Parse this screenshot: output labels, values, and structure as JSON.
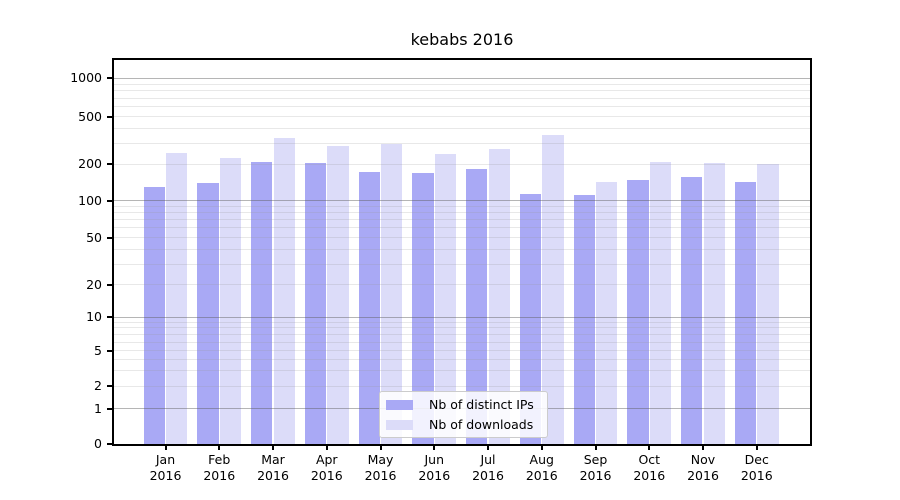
{
  "chart_data": {
    "type": "bar",
    "title": "kebabs 2016",
    "yscale": "symlog",
    "grid": true,
    "legend_position": "inside lower-center",
    "categories": [
      "Jan",
      "Feb",
      "Mar",
      "Apr",
      "May",
      "Jun",
      "Jul",
      "Aug",
      "Sep",
      "Oct",
      "Nov",
      "Dec"
    ],
    "year_label": "2016",
    "y_ticks": [
      0,
      1,
      2,
      5,
      10,
      20,
      50,
      100,
      200,
      500,
      1000
    ],
    "y_tick_labels": [
      "0",
      "1",
      "2",
      "5",
      "10",
      "20",
      "50",
      "100",
      "200",
      "500",
      "1000"
    ],
    "ylim": [
      0,
      1400
    ],
    "series": [
      {
        "name": "Nb of distinct IPs",
        "color": "#a9a9f5",
        "values": [
          129,
          140,
          208,
          205,
          174,
          170,
          184,
          113,
          111,
          148,
          156,
          144
        ]
      },
      {
        "name": "Nb of downloads",
        "color": "#dcdcf9",
        "values": [
          250,
          226,
          335,
          286,
          296,
          245,
          268,
          355,
          142,
          210,
          204,
          203
        ]
      }
    ]
  }
}
